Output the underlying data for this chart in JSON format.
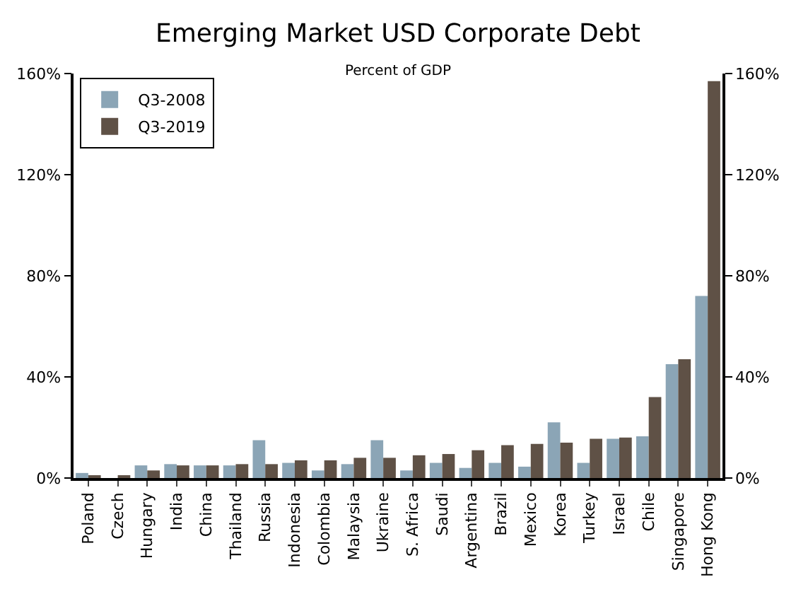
{
  "chart_data": {
    "type": "bar",
    "title": "Emerging Market USD Corporate Debt",
    "subtitle": "Percent of GDP",
    "categories": [
      "Poland",
      "Czech",
      "Hungary",
      "India",
      "China",
      "Thailand",
      "Russia",
      "Indonesia",
      "Colombia",
      "Malaysia",
      "Ukraine",
      "S. Africa",
      "Saudi",
      "Argentina",
      "Brazil",
      "Mexico",
      "Korea",
      "Turkey",
      "Israel",
      "Chile",
      "Singapore",
      "Hong Kong"
    ],
    "series": [
      {
        "name": "Q3-2008",
        "color": "#8ba5b6",
        "values": [
          2,
          0,
          5,
          5.5,
          5,
          5,
          15,
          6,
          3,
          5.5,
          15,
          3,
          6,
          4,
          6,
          4.5,
          22,
          6,
          15.5,
          16.5,
          45,
          72
        ]
      },
      {
        "name": "Q3-2019",
        "color": "#5f5146",
        "values": [
          1,
          1,
          3,
          5,
          5,
          5.5,
          5.5,
          7,
          7,
          8,
          8,
          9,
          9.5,
          11,
          13,
          13.5,
          14,
          15.5,
          16,
          32,
          47,
          157
        ]
      }
    ],
    "ylim": [
      0,
      160
    ],
    "yticks": [
      {
        "value": 0,
        "label": "0%"
      },
      {
        "value": 40,
        "label": "40%"
      },
      {
        "value": 80,
        "label": "80%"
      },
      {
        "value": 120,
        "label": "120%"
      },
      {
        "value": 160,
        "label": "160%"
      }
    ],
    "y2lim": [
      0,
      160
    ],
    "y2ticks": [
      {
        "value": 0,
        "label": "0%"
      },
      {
        "value": 40,
        "label": "40%"
      },
      {
        "value": 80,
        "label": "80%"
      },
      {
        "value": 120,
        "label": "120%"
      },
      {
        "value": 160,
        "label": "160%"
      }
    ],
    "grid": false,
    "legend": "top left"
  }
}
